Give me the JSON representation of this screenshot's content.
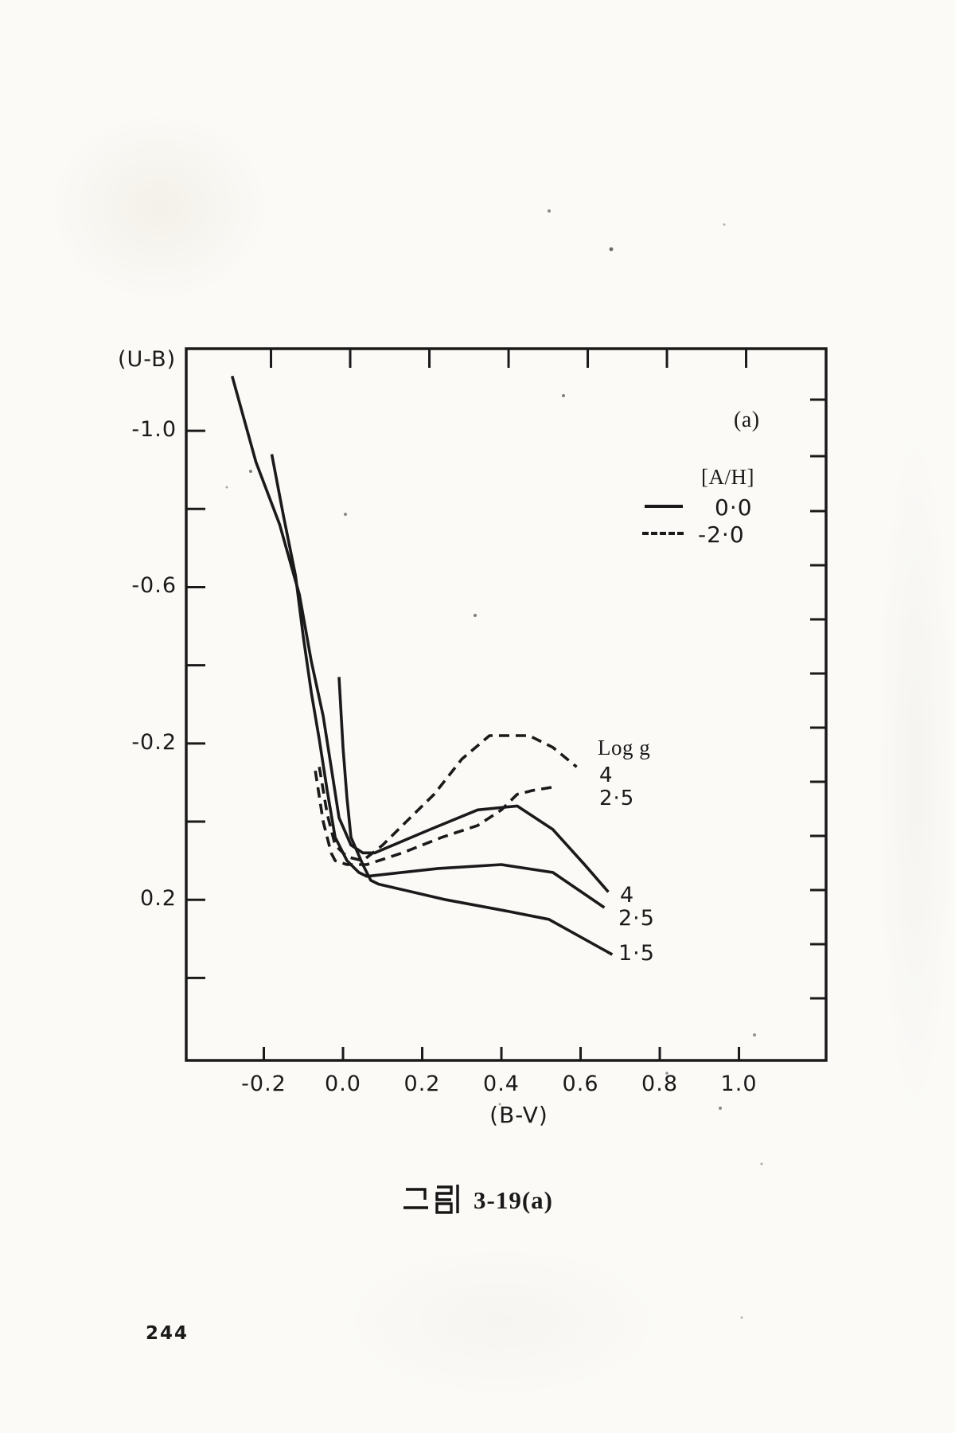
{
  "page": {
    "caption": {
      "full_text": "그림 3-19(a)",
      "hangul_part": "그림",
      "figure_ref": "3-19(a)"
    },
    "page_number": "244",
    "ink_color": "#1a1a1a",
    "paper_color": "#fbfaf7"
  },
  "plot": {
    "corner_label": "(a)",
    "y_axis_label": "(U-B)",
    "x_axis_label": "(B-V)",
    "legend": {
      "title": "[A/H]",
      "entries": [
        {
          "line_style": "solid",
          "label": "0·0"
        },
        {
          "line_style": "dashed",
          "label": "-2·0"
        }
      ]
    },
    "curve_labels": {
      "group_title": "Log g",
      "dashed_group": {
        "g4": "4",
        "g25": "2·5"
      },
      "solid_group": {
        "g4": "4",
        "g25": "2·5",
        "g15": "1·5"
      }
    }
  },
  "chart_data": {
    "type": "line",
    "title": "그림 3-19(a)",
    "xlabel": "(B-V)",
    "ylabel": "(U-B)",
    "x_ticks": [
      -0.2,
      0.0,
      0.2,
      0.4,
      0.6,
      0.8,
      1.0
    ],
    "x_tick_labels": [
      "-0.2",
      "0.0",
      "0.2",
      "0.4",
      "0.6",
      "0.8",
      "1.0"
    ],
    "y_ticks_labeled": [
      -1.0,
      -0.6,
      -0.2,
      0.2
    ],
    "y_tick_labels": [
      "-1.0",
      "-0.6",
      "-0.2",
      "0.2"
    ],
    "y_ticks_minor": [
      -0.8,
      -0.4,
      0.0,
      0.4
    ],
    "xlim": [
      -0.396,
      1.22
    ],
    "ylim_bottom_top": [
      0.611,
      -1.21
    ],
    "y_axis_inverted": true,
    "grid": false,
    "legend_position": "upper right",
    "series": [
      {
        "name": "[A/H]=0.0  log g=4",
        "metallicity": 0.0,
        "log_g": 4,
        "line_style": "solid",
        "points": [
          [
            -0.28,
            -1.14
          ],
          [
            -0.22,
            -0.92
          ],
          [
            -0.16,
            -0.76
          ],
          [
            -0.11,
            -0.58
          ],
          [
            -0.08,
            -0.41
          ],
          [
            -0.05,
            -0.27
          ],
          [
            -0.03,
            -0.14
          ],
          [
            -0.01,
            -0.01
          ],
          [
            0.02,
            0.06
          ],
          [
            0.05,
            0.08
          ],
          [
            0.08,
            0.08
          ],
          [
            0.22,
            0.02
          ],
          [
            0.34,
            -0.03
          ],
          [
            0.44,
            -0.04
          ],
          [
            0.53,
            0.02
          ],
          [
            0.61,
            0.11
          ],
          [
            0.67,
            0.18
          ]
        ]
      },
      {
        "name": "[A/H]=0.0  log g=2.5",
        "metallicity": 0.0,
        "log_g": 2.5,
        "line_style": "solid",
        "points": [
          [
            -0.18,
            -0.94
          ],
          [
            -0.15,
            -0.78
          ],
          [
            -0.12,
            -0.63
          ],
          [
            -0.1,
            -0.47
          ],
          [
            -0.08,
            -0.33
          ],
          [
            -0.06,
            -0.21
          ],
          [
            -0.04,
            -0.08
          ],
          [
            -0.02,
            0.04
          ],
          [
            0.01,
            0.1
          ],
          [
            0.04,
            0.13
          ],
          [
            0.06,
            0.14
          ],
          [
            0.24,
            0.12
          ],
          [
            0.4,
            0.11
          ],
          [
            0.53,
            0.13
          ],
          [
            0.66,
            0.22
          ]
        ]
      },
      {
        "name": "[A/H]=0.0  log g=1.5",
        "metallicity": 0.0,
        "log_g": 1.5,
        "line_style": "solid",
        "points": [
          [
            -0.01,
            -0.37
          ],
          [
            0.0,
            -0.19
          ],
          [
            0.01,
            -0.06
          ],
          [
            0.02,
            0.04
          ],
          [
            0.05,
            0.11
          ],
          [
            0.07,
            0.15
          ],
          [
            0.09,
            0.16
          ],
          [
            0.26,
            0.2
          ],
          [
            0.42,
            0.23
          ],
          [
            0.52,
            0.25
          ],
          [
            0.68,
            0.34
          ]
        ]
      },
      {
        "name": "[A/H]=-2.0  log g=4",
        "metallicity": -2.0,
        "log_g": 4,
        "line_style": "dashed",
        "points": [
          [
            -0.06,
            -0.14
          ],
          [
            -0.04,
            -0.02
          ],
          [
            -0.02,
            0.06
          ],
          [
            0.01,
            0.09
          ],
          [
            0.05,
            0.1
          ],
          [
            0.1,
            0.06
          ],
          [
            0.16,
            0.0
          ],
          [
            0.23,
            -0.07
          ],
          [
            0.3,
            -0.16
          ],
          [
            0.37,
            -0.22
          ],
          [
            0.47,
            -0.22
          ],
          [
            0.53,
            -0.19
          ],
          [
            0.59,
            -0.14
          ]
        ]
      },
      {
        "name": "[A/H]=-2.0  log g=2.5",
        "metallicity": -2.0,
        "log_g": 2.5,
        "line_style": "dashed",
        "points": [
          [
            -0.07,
            -0.13
          ],
          [
            -0.05,
            0.0
          ],
          [
            -0.03,
            0.08
          ],
          [
            -0.02,
            0.1
          ],
          [
            0.01,
            0.11
          ],
          [
            0.06,
            0.11
          ],
          [
            0.15,
            0.08
          ],
          [
            0.25,
            0.04
          ],
          [
            0.34,
            0.01
          ],
          [
            0.4,
            -0.03
          ],
          [
            0.44,
            -0.07
          ],
          [
            0.48,
            -0.08
          ],
          [
            0.54,
            -0.09
          ]
        ]
      }
    ]
  }
}
